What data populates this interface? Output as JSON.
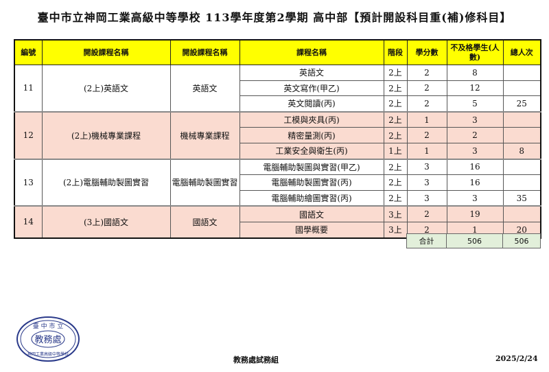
{
  "title": "臺中市立神岡工業高級中等學校 113學年度第2學期 高中部【預計開設科目重(補)修科目】",
  "headers": [
    "編號",
    "開設課程名稱",
    "開設課程名稱",
    "課程名稱",
    "階段",
    "學分數",
    "不及格學生(人數)",
    "總人次"
  ],
  "groups": [
    {
      "no": "11",
      "course": "(2上)英語文",
      "subject": "英語文",
      "total": "25",
      "rows": [
        {
          "name": "英語文",
          "stage": "2上",
          "credits": "2",
          "failed": "8"
        },
        {
          "name": "英文寫作(甲乙)",
          "stage": "2上",
          "credits": "2",
          "failed": "12"
        },
        {
          "name": "英文閱讀(丙)",
          "stage": "2上",
          "credits": "2",
          "failed": "5"
        }
      ]
    },
    {
      "no": "12",
      "course": "(2上)機械專業課程",
      "subject": "機械專業課程",
      "total": "8",
      "rows": [
        {
          "name": "工模與夾具(丙)",
          "stage": "2上",
          "credits": "1",
          "failed": "3"
        },
        {
          "name": "精密量測(丙)",
          "stage": "2上",
          "credits": "2",
          "failed": "2"
        },
        {
          "name": "工業安全與衛生(丙)",
          "stage": "1上",
          "credits": "1",
          "failed": "3"
        }
      ]
    },
    {
      "no": "13",
      "course": "(2上)電腦輔助製圖實習",
      "subject": "電腦輔助製圖實習",
      "total": "35",
      "rows": [
        {
          "name": "電腦輔助製圖與實習(甲乙)",
          "stage": "2上",
          "credits": "3",
          "failed": "16"
        },
        {
          "name": "電腦輔助製圖實習(丙)",
          "stage": "2上",
          "credits": "3",
          "failed": "16"
        },
        {
          "name": "電腦輔助繪圖實習(丙)",
          "stage": "2上",
          "credits": "3",
          "failed": "3"
        }
      ]
    },
    {
      "no": "14",
      "course": "(3上)國語文",
      "subject": "國語文",
      "total": "20",
      "rows": [
        {
          "name": "國語文",
          "stage": "3上",
          "credits": "2",
          "failed": "19"
        },
        {
          "name": "國學概要",
          "stage": "3上",
          "credits": "2",
          "failed": "1"
        }
      ]
    }
  ],
  "summary": {
    "label": "合計",
    "failed_total": "506",
    "total": "506"
  },
  "stamp": {
    "top": "臺中市立",
    "center": "教務處",
    "bottom": "神岡工業高級中等學校"
  },
  "footer": {
    "office": "教務處試務組",
    "date": "2025/2/24"
  }
}
